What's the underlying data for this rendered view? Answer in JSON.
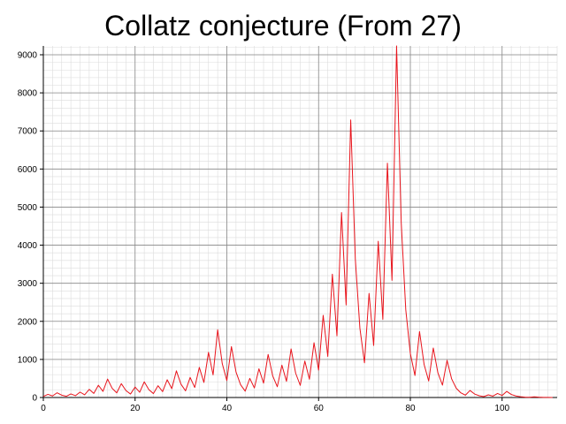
{
  "chart_data": {
    "type": "line",
    "title": "Collatz conjecture (From 27)",
    "xlabel": "",
    "ylabel": "",
    "xlim": [
      0,
      112
    ],
    "ylim": [
      0,
      9232
    ],
    "x_ticks": [
      0,
      20,
      40,
      60,
      80,
      100
    ],
    "y_ticks": [
      0,
      1000,
      2000,
      3000,
      4000,
      5000,
      6000,
      7000,
      8000,
      9000
    ],
    "x_minor_step": 2,
    "y_minor_step": 200,
    "grid": true,
    "colors": {
      "line": "#e8141c",
      "major_grid": "#888888",
      "minor_grid": "#dcdcdc",
      "axis": "#000000"
    },
    "series": [
      {
        "values": [
          27,
          82,
          41,
          124,
          62,
          31,
          94,
          47,
          142,
          71,
          214,
          107,
          322,
          161,
          484,
          242,
          121,
          364,
          182,
          91,
          274,
          137,
          412,
          206,
          103,
          310,
          155,
          466,
          233,
          700,
          350,
          175,
          526,
          263,
          790,
          395,
          1186,
          593,
          1780,
          890,
          445,
          1336,
          668,
          334,
          167,
          502,
          251,
          754,
          377,
          1132,
          566,
          283,
          850,
          425,
          1276,
          638,
          319,
          958,
          479,
          1438,
          719,
          2158,
          1079,
          3238,
          1619,
          4858,
          2429,
          7288,
          3644,
          1822,
          911,
          2734,
          1367,
          4102,
          2051,
          6154,
          3077,
          9232,
          4616,
          2308,
          1154,
          577,
          1732,
          866,
          433,
          1300,
          650,
          325,
          976,
          488,
          244,
          122,
          61,
          184,
          92,
          46,
          23,
          70,
          35,
          106,
          53,
          160,
          80,
          40,
          20,
          10,
          5,
          16,
          8,
          4,
          2,
          1
        ]
      }
    ]
  }
}
